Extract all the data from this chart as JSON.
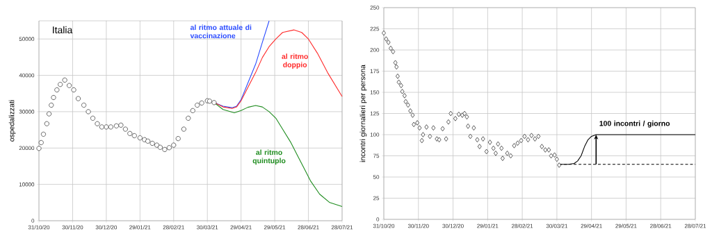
{
  "chart_data": [
    {
      "type": "line",
      "title": "Italia",
      "ylabel": "ospedalizzati",
      "xlim": [
        "2020-10-31",
        "2021-07-28"
      ],
      "xticks": [
        {
          "value": "2020-10-31",
          "label": "31/10/20"
        },
        {
          "value": "2020-11-30",
          "label": "30/11/20"
        },
        {
          "value": "2020-12-30",
          "label": "30/12/20"
        },
        {
          "value": "2021-01-29",
          "label": "29/01/21"
        },
        {
          "value": "2021-02-28",
          "label": "28/02/21"
        },
        {
          "value": "2021-03-30",
          "label": "30/03/21"
        },
        {
          "value": "2021-04-29",
          "label": "29/04/21"
        },
        {
          "value": "2021-05-29",
          "label": "29/05/21"
        },
        {
          "value": "2021-06-28",
          "label": "28/06/21"
        },
        {
          "value": "2021-07-28",
          "label": "28/07/21"
        }
      ],
      "ylim": [
        0,
        55000
      ],
      "yticks": [
        0,
        10000,
        20000,
        30000,
        40000,
        50000
      ],
      "grid": true,
      "series": [
        {
          "type": "scatter",
          "marker": "circle",
          "color": "#444444",
          "x": [
            "2020-10-31",
            "2020-11-02",
            "2020-11-04",
            "2020-11-07",
            "2020-11-09",
            "2020-11-11",
            "2020-11-13",
            "2020-11-16",
            "2020-11-19",
            "2020-11-23",
            "2020-11-27",
            "2020-12-01",
            "2020-12-05",
            "2020-12-10",
            "2020-12-14",
            "2020-12-18",
            "2020-12-22",
            "2020-12-26",
            "2020-12-30",
            "2021-01-03",
            "2021-01-08",
            "2021-01-12",
            "2021-01-16",
            "2021-01-20",
            "2021-01-24",
            "2021-01-29",
            "2021-02-02",
            "2021-02-05",
            "2021-02-09",
            "2021-02-13",
            "2021-02-16",
            "2021-02-20",
            "2021-02-24",
            "2021-02-28",
            "2021-03-04",
            "2021-03-09",
            "2021-03-13",
            "2021-03-17",
            "2021-03-21",
            "2021-03-25",
            "2021-03-30",
            "2021-04-01",
            "2021-04-05"
          ],
          "values": [
            19900,
            21500,
            23800,
            26700,
            29400,
            31800,
            33900,
            36000,
            37500,
            38700,
            37200,
            36000,
            33600,
            31800,
            30000,
            28200,
            26700,
            25800,
            25800,
            25800,
            26100,
            26300,
            25200,
            24000,
            23400,
            22800,
            22300,
            21900,
            21300,
            20800,
            20200,
            19600,
            20100,
            20800,
            22600,
            25200,
            28200,
            30300,
            31800,
            32400,
            33000,
            32900,
            32500
          ]
        },
        {
          "name": "al ritmo attuale di vaccinazione",
          "color": "#2a4bff",
          "x": [
            "2021-04-05",
            "2021-04-13",
            "2021-04-21",
            "2021-04-25",
            "2021-04-29",
            "2021-05-05",
            "2021-05-12",
            "2021-05-18",
            "2021-05-24"
          ],
          "values": [
            32500,
            31500,
            31100,
            31500,
            33300,
            37800,
            43100,
            49100,
            55000
          ]
        },
        {
          "name": "al ritmo doppio",
          "color": "#ff2a2a",
          "x": [
            "2021-04-05",
            "2021-04-13",
            "2021-04-21",
            "2021-04-25",
            "2021-04-29",
            "2021-05-05",
            "2021-05-12",
            "2021-05-18",
            "2021-05-24",
            "2021-05-30",
            "2021-06-05",
            "2021-06-15",
            "2021-06-22",
            "2021-06-28",
            "2021-07-06",
            "2021-07-15",
            "2021-07-28"
          ],
          "values": [
            32500,
            31300,
            30900,
            31300,
            33000,
            36600,
            40800,
            44900,
            47900,
            50000,
            51800,
            52500,
            51800,
            50000,
            46100,
            40800,
            34200
          ]
        },
        {
          "name": "al ritmo quintuplo",
          "color": "#1e8c1e",
          "x": [
            "2021-04-05",
            "2021-04-13",
            "2021-04-23",
            "2021-04-29",
            "2021-05-05",
            "2021-05-12",
            "2021-05-18",
            "2021-05-24",
            "2021-05-30",
            "2021-06-05",
            "2021-06-12",
            "2021-06-18",
            "2021-06-24",
            "2021-06-30",
            "2021-07-08",
            "2021-07-17",
            "2021-07-28"
          ],
          "values": [
            32500,
            30600,
            29700,
            30300,
            31200,
            31700,
            31300,
            30000,
            28200,
            25200,
            21700,
            18100,
            14500,
            10900,
            7300,
            5000,
            3900
          ]
        }
      ]
    },
    {
      "type": "scatter",
      "ylabel": "incontri giornalieri per persona",
      "xlim": [
        "2020-10-31",
        "2021-07-28"
      ],
      "xticks": [
        {
          "value": "2020-10-31",
          "label": "31/10/20"
        },
        {
          "value": "2020-11-30",
          "label": "30/11/20"
        },
        {
          "value": "2020-12-30",
          "label": "30/12/20"
        },
        {
          "value": "2021-01-29",
          "label": "29/01/21"
        },
        {
          "value": "2021-02-28",
          "label": "28/02/21"
        },
        {
          "value": "2021-03-30",
          "label": "30/03/21"
        },
        {
          "value": "2021-04-29",
          "label": "29/04/21"
        },
        {
          "value": "2021-05-29",
          "label": "29/05/21"
        },
        {
          "value": "2021-06-28",
          "label": "28/06/21"
        },
        {
          "value": "2021-07-28",
          "label": "28/07/21"
        }
      ],
      "ylim": [
        0,
        250
      ],
      "yticks": [
        0,
        25,
        50,
        75,
        100,
        125,
        150,
        175,
        200,
        225,
        250
      ],
      "grid": true,
      "series": [
        {
          "marker": "diamond",
          "color": "#333333",
          "x": [
            "2020-10-31",
            "2020-11-02",
            "2020-11-04",
            "2020-11-06",
            "2020-11-08",
            "2020-11-10",
            "2020-11-11",
            "2020-11-12",
            "2020-11-13",
            "2020-11-15",
            "2020-11-16",
            "2020-11-18",
            "2020-11-19",
            "2020-11-21",
            "2020-11-23",
            "2020-11-25",
            "2020-11-26",
            "2020-11-29",
            "2020-12-01",
            "2020-12-03",
            "2020-12-04",
            "2020-12-07",
            "2020-12-10",
            "2020-12-13",
            "2020-12-16",
            "2020-12-18",
            "2020-12-21",
            "2020-12-24",
            "2020-12-26",
            "2020-12-28",
            "2021-01-01",
            "2021-01-04",
            "2021-01-07",
            "2021-01-09",
            "2021-01-11",
            "2021-01-12",
            "2021-01-14",
            "2021-01-17",
            "2021-01-20",
            "2021-01-22",
            "2021-01-25",
            "2021-01-28",
            "2021-01-31",
            "2021-02-03",
            "2021-02-05",
            "2021-02-07",
            "2021-02-10",
            "2021-02-11",
            "2021-02-15",
            "2021-02-18",
            "2021-02-21",
            "2021-02-24",
            "2021-02-27",
            "2021-03-02",
            "2021-03-05",
            "2021-03-08",
            "2021-03-11",
            "2021-03-14",
            "2021-03-17",
            "2021-03-20",
            "2021-03-23",
            "2021-03-25",
            "2021-03-28",
            "2021-03-30",
            "2021-04-01"
          ],
          "values": [
            220,
            213,
            209,
            202,
            198,
            185,
            180,
            169,
            162,
            158,
            151,
            146,
            139,
            135,
            128,
            123,
            112,
            114,
            108,
            93,
            100,
            109,
            98,
            108,
            95,
            94,
            107,
            95,
            115,
            125,
            119,
            124,
            123,
            125,
            121,
            110,
            98,
            108,
            94,
            86,
            95,
            80,
            91,
            84,
            78,
            89,
            84,
            72,
            78,
            75,
            87,
            90,
            93,
            98,
            94,
            99,
            95,
            98,
            86,
            82,
            82,
            75,
            76,
            71,
            64
          ]
        },
        {
          "type": "line",
          "name": "100 incontri / giorno",
          "color": "#000000",
          "x": [
            "2021-04-01",
            "2021-04-09",
            "2021-04-14",
            "2021-04-17",
            "2021-04-20",
            "2021-04-23",
            "2021-04-26",
            "2021-04-29",
            "2021-05-03",
            "2021-07-28"
          ],
          "values": [
            65,
            65,
            66,
            69,
            75,
            86,
            94,
            98,
            100,
            100
          ]
        },
        {
          "type": "line",
          "line_style": "dashed",
          "color": "#000000",
          "x": [
            "2021-04-01",
            "2021-07-28"
          ],
          "values": [
            65,
            65
          ]
        }
      ]
    }
  ]
}
